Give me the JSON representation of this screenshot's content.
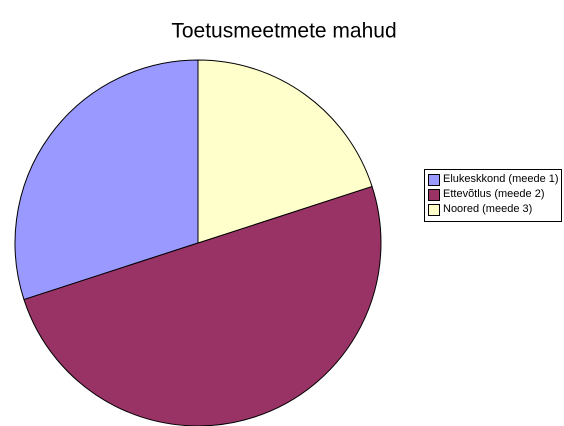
{
  "chart_data": {
    "type": "pie",
    "title": "Toetusmeetmete mahud",
    "categories": [
      "Elukeskkond (meede 1)",
      "Ettevõtlus (meede 2)",
      "Noored (meede 3)"
    ],
    "values": [
      30,
      50,
      20
    ],
    "colors": [
      "#9999ff",
      "#993366",
      "#ffffcc"
    ]
  }
}
